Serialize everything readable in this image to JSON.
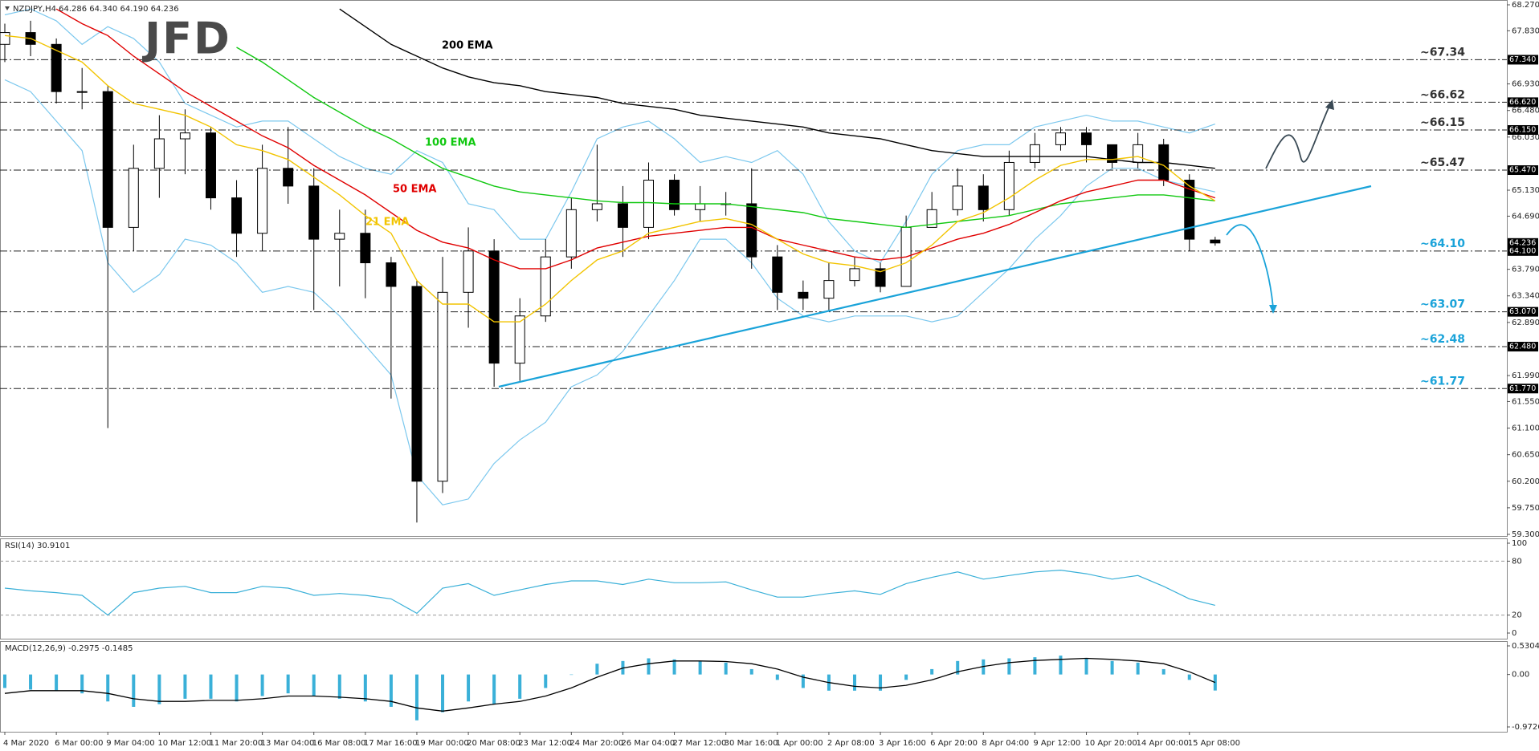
{
  "chart_data": [
    {
      "type": "candlestick",
      "title": "NZDJPY,H4 64.286 64.340 64.190 64.236",
      "logo": "JFD",
      "categories": [
        "4 Mar 2020",
        null,
        "6 Mar 00:00",
        null,
        "9 Mar 04:00",
        null,
        "10 Mar 12:00",
        null,
        "11 Mar 20:00",
        null,
        "13 Mar 04:00",
        null,
        "16 Mar 08:00",
        null,
        "17 Mar 16:00",
        null,
        "19 Mar 00:00",
        null,
        "20 Mar 08:00",
        null,
        "23 Mar 12:00",
        null,
        "24 Mar 20:00",
        null,
        "26 Mar 04:00",
        null,
        "27 Mar 12:00",
        null,
        "30 Mar 16:00",
        null,
        "1 Apr 00:00",
        null,
        "2 Apr 08:00",
        null,
        "3 Apr 16:00",
        null,
        "6 Apr 20:00",
        null,
        "8 Apr 04:00",
        null,
        "9 Apr 12:00",
        null,
        "10 Apr 20:00",
        null,
        "14 Apr 00:00",
        null,
        "15 Apr 08:00",
        null
      ],
      "open": [
        67.6,
        67.8,
        67.6,
        66.8,
        66.8,
        64.5,
        65.5,
        66.0,
        66.1,
        65.0,
        64.4,
        65.5,
        65.2,
        64.3,
        64.4,
        63.9,
        63.5,
        60.2,
        63.4,
        64.1,
        62.2,
        63.0,
        64.0,
        64.8,
        64.9,
        64.5,
        65.3,
        64.8,
        64.9,
        64.9,
        64.0,
        63.4,
        63.3,
        63.6,
        63.8,
        63.5,
        64.5,
        64.8,
        65.2,
        64.8,
        65.6,
        65.9,
        66.1,
        65.9,
        65.6,
        65.9,
        65.3,
        64.286
      ],
      "high": [
        67.95,
        68.0,
        67.7,
        67.2,
        66.9,
        65.9,
        66.4,
        66.5,
        66.2,
        65.3,
        65.9,
        66.2,
        65.5,
        64.8,
        64.8,
        64.0,
        63.6,
        64.0,
        64.5,
        64.3,
        63.3,
        64.3,
        65.0,
        65.9,
        65.2,
        65.6,
        65.4,
        65.2,
        65.1,
        65.5,
        64.2,
        63.6,
        63.9,
        64.0,
        63.9,
        64.7,
        65.1,
        65.5,
        65.4,
        65.8,
        66.1,
        66.2,
        66.2,
        65.9,
        66.1,
        66.0,
        65.4,
        64.34
      ],
      "low": [
        67.3,
        67.4,
        66.6,
        66.5,
        61.1,
        64.1,
        65.0,
        65.4,
        64.8,
        64.0,
        64.1,
        64.9,
        63.1,
        63.5,
        63.3,
        61.6,
        59.5,
        60.0,
        62.8,
        61.8,
        61.9,
        62.9,
        63.8,
        64.6,
        64.0,
        64.3,
        64.7,
        64.6,
        64.7,
        63.8,
        63.1,
        63.1,
        63.1,
        63.5,
        63.4,
        63.5,
        64.5,
        64.7,
        64.6,
        64.7,
        65.5,
        65.8,
        65.6,
        65.5,
        65.5,
        65.2,
        64.1,
        64.19
      ],
      "close": [
        67.8,
        67.6,
        66.8,
        66.8,
        64.5,
        65.5,
        66.0,
        66.1,
        65.0,
        64.4,
        65.5,
        65.2,
        64.3,
        64.4,
        63.9,
        63.5,
        60.2,
        63.4,
        64.1,
        62.2,
        63.0,
        64.0,
        64.8,
        64.9,
        64.5,
        65.3,
        64.8,
        64.9,
        64.9,
        64.0,
        63.4,
        63.3,
        63.6,
        63.8,
        63.5,
        64.5,
        64.8,
        65.2,
        64.8,
        65.6,
        65.9,
        66.1,
        65.9,
        65.6,
        65.9,
        65.3,
        64.3,
        64.236
      ],
      "series": [
        {
          "name": "200 EMA",
          "color": "#000000",
          "values": [
            null,
            null,
            null,
            null,
            null,
            null,
            null,
            null,
            null,
            null,
            null,
            null,
            null,
            68.2,
            67.9,
            67.6,
            67.4,
            67.2,
            67.05,
            66.95,
            66.9,
            66.8,
            66.75,
            66.7,
            66.6,
            66.55,
            66.5,
            66.4,
            66.35,
            66.3,
            66.25,
            66.2,
            66.1,
            66.05,
            66.0,
            65.9,
            65.8,
            65.75,
            65.7,
            65.7,
            65.7,
            65.7,
            65.7,
            65.65,
            65.6,
            65.6,
            65.55,
            65.5
          ]
        },
        {
          "name": "100 EMA",
          "color": "#10c810",
          "values": [
            null,
            null,
            null,
            null,
            null,
            null,
            null,
            null,
            null,
            67.55,
            67.3,
            67.0,
            66.7,
            66.45,
            66.2,
            66.0,
            65.75,
            65.5,
            65.35,
            65.2,
            65.1,
            65.05,
            65.0,
            64.95,
            64.92,
            64.92,
            64.9,
            64.9,
            64.9,
            64.85,
            64.8,
            64.75,
            64.65,
            64.6,
            64.55,
            64.5,
            64.55,
            64.6,
            64.65,
            64.7,
            64.8,
            64.9,
            64.95,
            65.0,
            65.05,
            65.05,
            65.0,
            64.95
          ]
        },
        {
          "name": "50 EMA",
          "color": "#e00000",
          "values": [
            null,
            null,
            68.2,
            67.95,
            67.75,
            67.4,
            67.1,
            66.8,
            66.55,
            66.3,
            66.05,
            65.85,
            65.55,
            65.3,
            65.05,
            64.75,
            64.45,
            64.25,
            64.15,
            63.95,
            63.8,
            63.8,
            63.95,
            64.15,
            64.25,
            64.35,
            64.4,
            64.45,
            64.5,
            64.5,
            64.3,
            64.2,
            64.1,
            64.0,
            63.95,
            64.0,
            64.15,
            64.3,
            64.4,
            64.55,
            64.75,
            64.95,
            65.1,
            65.2,
            65.3,
            65.3,
            65.15,
            65.0
          ]
        },
        {
          "name": "21 EMA",
          "color": "#f2c400",
          "values": [
            67.75,
            67.7,
            67.5,
            67.3,
            66.9,
            66.6,
            66.5,
            66.4,
            66.2,
            65.9,
            65.8,
            65.65,
            65.35,
            65.05,
            64.7,
            64.4,
            63.6,
            63.2,
            63.2,
            62.9,
            62.9,
            63.2,
            63.6,
            63.95,
            64.1,
            64.4,
            64.5,
            64.6,
            64.65,
            64.55,
            64.3,
            64.05,
            63.9,
            63.85,
            63.75,
            63.9,
            64.2,
            64.6,
            64.75,
            65.0,
            65.3,
            65.55,
            65.65,
            65.65,
            65.7,
            65.55,
            65.2,
            64.95
          ]
        }
      ],
      "bands": {
        "color": "#7cc8ee",
        "upper": [
          68.1,
          68.2,
          68.0,
          67.6,
          67.9,
          67.7,
          67.3,
          66.6,
          66.4,
          66.2,
          66.3,
          66.3,
          66.0,
          65.7,
          65.5,
          65.4,
          65.8,
          65.6,
          64.9,
          64.8,
          64.3,
          64.3,
          65.1,
          66.0,
          66.2,
          66.3,
          66.0,
          65.6,
          65.7,
          65.6,
          65.8,
          65.4,
          64.6,
          64.1,
          63.9,
          64.6,
          65.4,
          65.8,
          65.9,
          65.9,
          66.2,
          66.3,
          66.4,
          66.3,
          66.3,
          66.2,
          66.1,
          66.25
        ],
        "lower": [
          67.0,
          66.8,
          66.3,
          65.8,
          63.9,
          63.4,
          63.7,
          64.3,
          64.2,
          63.9,
          63.4,
          63.5,
          63.4,
          63.0,
          62.5,
          62.0,
          60.3,
          59.8,
          59.9,
          60.5,
          60.9,
          61.2,
          61.8,
          62.0,
          62.4,
          63.0,
          63.6,
          64.3,
          64.3,
          63.9,
          63.3,
          63.0,
          62.9,
          63.0,
          63.0,
          63.0,
          62.9,
          63.0,
          63.4,
          63.8,
          64.3,
          64.7,
          65.2,
          65.5,
          65.5,
          65.3,
          65.2,
          65.1
        ]
      },
      "ylim": [
        59.3,
        68.27
      ],
      "yticks": [
        {
          "value": 68.27,
          "label": "68.270"
        },
        {
          "value": 67.83,
          "label": "67.830"
        },
        {
          "value": 66.93,
          "label": "66.930"
        },
        {
          "value": 66.48,
          "label": "66.480"
        },
        {
          "value": 66.03,
          "label": "66.030"
        },
        {
          "value": 65.13,
          "label": "65.130"
        },
        {
          "value": 64.69,
          "label": "64.690"
        },
        {
          "value": 63.79,
          "label": "63.790"
        },
        {
          "value": 63.34,
          "label": "63.340"
        },
        {
          "value": 62.89,
          "label": "62.890"
        },
        {
          "value": 61.99,
          "label": "61.990"
        },
        {
          "value": 61.55,
          "label": "61.550"
        },
        {
          "value": 61.1,
          "label": "61.100"
        },
        {
          "value": 60.65,
          "label": "60.650"
        },
        {
          "value": 60.2,
          "label": "60.200"
        },
        {
          "value": 59.75,
          "label": "59.750"
        },
        {
          "value": 59.3,
          "label": "59.300"
        }
      ],
      "levels": [
        {
          "value": 67.34,
          "label": "~67.34",
          "box": "67.340",
          "color": "#333333"
        },
        {
          "value": 66.62,
          "label": "~66.62",
          "box": "66.620",
          "color": "#333333"
        },
        {
          "value": 66.15,
          "label": "~66.15",
          "box": "66.150",
          "color": "#333333"
        },
        {
          "value": 65.47,
          "label": "~65.47",
          "box": "65.470",
          "color": "#333333"
        },
        {
          "value": 64.1,
          "label": "~64.10",
          "box": "64.100",
          "color": "#1aa3d9"
        },
        {
          "value": 63.07,
          "label": "~63.07",
          "box": "63.070",
          "color": "#1aa3d9"
        },
        {
          "value": 62.48,
          "label": "~62.48",
          "box": "62.480",
          "color": "#1aa3d9"
        },
        {
          "value": 61.77,
          "label": "~61.77",
          "box": "61.770",
          "color": "#1aa3d9"
        }
      ],
      "last_price": 64.236
    },
    {
      "type": "line",
      "title": "RSI(14) 30.9101",
      "color": "#3ab0d8",
      "values": [
        50,
        47,
        45,
        42,
        20,
        45,
        50,
        52,
        45,
        45,
        52,
        50,
        42,
        44,
        42,
        38,
        22,
        50,
        55,
        42,
        48,
        54,
        58,
        58,
        54,
        60,
        56,
        56,
        57,
        48,
        40,
        40,
        44,
        47,
        43,
        55,
        62,
        68,
        60,
        64,
        68,
        70,
        66,
        60,
        64,
        52,
        38,
        30.9101
      ],
      "ylim": [
        0,
        100
      ],
      "yticks": [
        0,
        20,
        80,
        100
      ]
    },
    {
      "type": "macd",
      "title": "MACD(12,26,9) -0.2975 -0.1485",
      "color": "#3ab0d8",
      "signal_color": "#000000",
      "values": [
        -0.25,
        -0.28,
        -0.3,
        -0.35,
        -0.5,
        -0.6,
        -0.55,
        -0.45,
        -0.45,
        -0.5,
        -0.4,
        -0.35,
        -0.4,
        -0.45,
        -0.5,
        -0.6,
        -0.85,
        -0.7,
        -0.5,
        -0.55,
        -0.45,
        -0.25,
        0.0,
        0.2,
        0.25,
        0.3,
        0.28,
        0.25,
        0.22,
        0.1,
        -0.1,
        -0.25,
        -0.3,
        -0.3,
        -0.3,
        -0.1,
        0.1,
        0.25,
        0.28,
        0.3,
        0.32,
        0.35,
        0.3,
        0.25,
        0.22,
        0.1,
        -0.1,
        -0.2975
      ],
      "signal": [
        -0.35,
        -0.3,
        -0.3,
        -0.3,
        -0.35,
        -0.45,
        -0.5,
        -0.5,
        -0.48,
        -0.48,
        -0.45,
        -0.4,
        -0.4,
        -0.42,
        -0.45,
        -0.5,
        -0.62,
        -0.68,
        -0.62,
        -0.55,
        -0.5,
        -0.4,
        -0.25,
        -0.05,
        0.12,
        0.2,
        0.25,
        0.25,
        0.24,
        0.2,
        0.1,
        -0.05,
        -0.15,
        -0.22,
        -0.25,
        -0.2,
        -0.1,
        0.05,
        0.15,
        0.22,
        0.26,
        0.28,
        0.3,
        0.28,
        0.25,
        0.2,
        0.05,
        -0.1485
      ],
      "ylim": [
        -0.9726,
        0.5304
      ],
      "yticks": [
        0.5304,
        {
          "value": 0,
          "label": "0.00"
        },
        -0.9726
      ]
    }
  ]
}
